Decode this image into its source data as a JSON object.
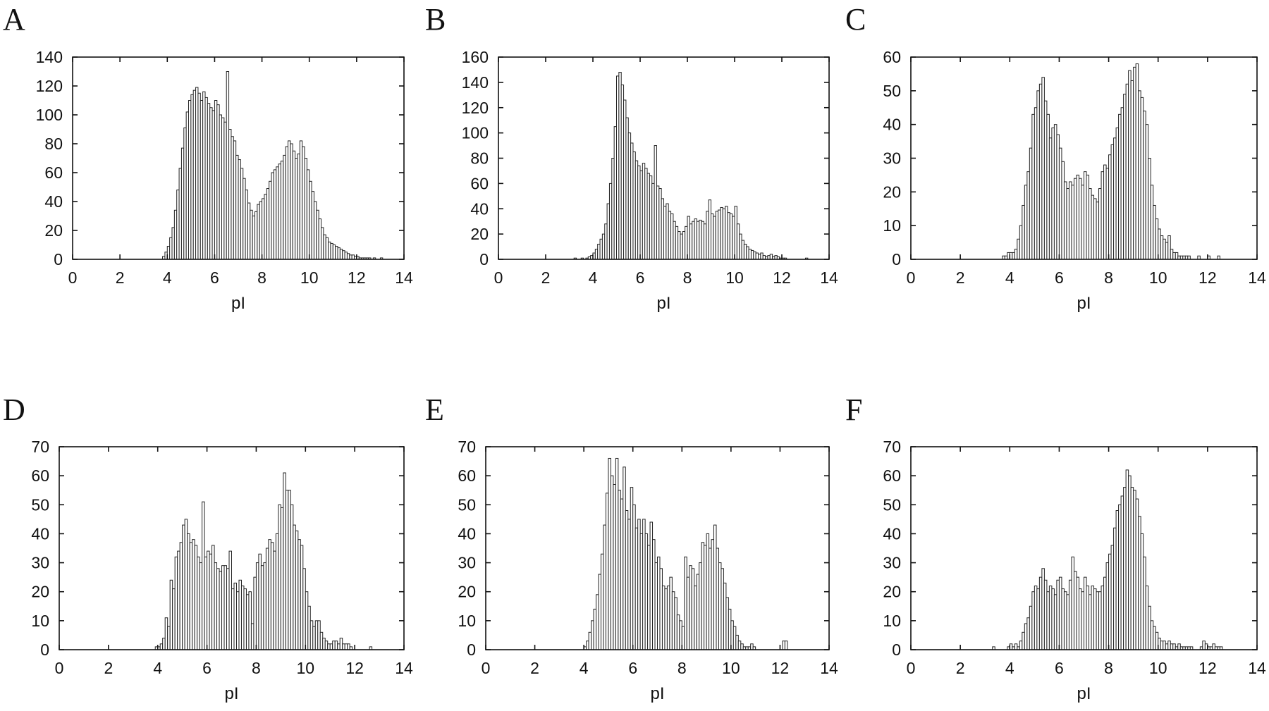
{
  "chart_data": [
    {
      "panel": "A",
      "type": "bar",
      "xlabel": "pI",
      "xlim": [
        0,
        14
      ],
      "ylim": [
        0,
        140
      ],
      "xticks": [
        0,
        2,
        4,
        6,
        8,
        10,
        12,
        14
      ],
      "yticks": [
        0,
        20,
        40,
        60,
        80,
        100,
        120,
        140
      ],
      "bin_width": 0.1,
      "x": [
        3.8,
        3.9,
        4.0,
        4.1,
        4.2,
        4.3,
        4.4,
        4.5,
        4.6,
        4.7,
        4.8,
        4.9,
        5.0,
        5.1,
        5.2,
        5.3,
        5.4,
        5.5,
        5.6,
        5.7,
        5.8,
        5.9,
        6.0,
        6.1,
        6.2,
        6.3,
        6.4,
        6.5,
        6.6,
        6.7,
        6.8,
        6.9,
        7.0,
        7.1,
        7.2,
        7.3,
        7.4,
        7.5,
        7.6,
        7.7,
        7.8,
        7.9,
        8.0,
        8.1,
        8.2,
        8.3,
        8.4,
        8.5,
        8.6,
        8.7,
        8.8,
        8.9,
        9.0,
        9.1,
        9.2,
        9.3,
        9.4,
        9.5,
        9.6,
        9.7,
        9.8,
        9.9,
        10.0,
        10.1,
        10.2,
        10.3,
        10.4,
        10.5,
        10.6,
        10.7,
        10.8,
        10.9,
        11.0,
        11.1,
        11.2,
        11.3,
        11.4,
        11.5,
        11.6,
        11.7,
        11.8,
        11.9,
        12.0,
        12.1,
        12.2,
        12.3,
        12.4,
        12.5,
        12.6,
        12.7,
        12.8,
        12.9,
        13.0
      ],
      "values": [
        2,
        5,
        9,
        15,
        22,
        34,
        48,
        63,
        77,
        91,
        102,
        110,
        114,
        117,
        119,
        115,
        110,
        116,
        112,
        108,
        105,
        103,
        110,
        107,
        100,
        98,
        95,
        130,
        90,
        85,
        82,
        72,
        69,
        63,
        56,
        48,
        39,
        34,
        30,
        33,
        38,
        40,
        42,
        45,
        49,
        54,
        60,
        62,
        64,
        66,
        68,
        72,
        78,
        82,
        80,
        75,
        70,
        73,
        82,
        78,
        70,
        62,
        54,
        47,
        40,
        34,
        28,
        22,
        17,
        15,
        12,
        11,
        10,
        9,
        8,
        7,
        6,
        5,
        4,
        3,
        3,
        2,
        2,
        1,
        1,
        1,
        1,
        1,
        0,
        1,
        0,
        0,
        1
      ]
    },
    {
      "panel": "B",
      "type": "bar",
      "xlabel": "pI",
      "xlim": [
        0,
        14
      ],
      "ylim": [
        0,
        160
      ],
      "xticks": [
        0,
        2,
        4,
        6,
        8,
        10,
        12,
        14
      ],
      "yticks": [
        0,
        20,
        40,
        60,
        80,
        100,
        120,
        140,
        160
      ],
      "bin_width": 0.1,
      "x": [
        3.2,
        3.3,
        3.4,
        3.5,
        3.6,
        3.7,
        3.8,
        3.9,
        4.0,
        4.1,
        4.2,
        4.3,
        4.4,
        4.5,
        4.6,
        4.7,
        4.8,
        4.9,
        5.0,
        5.1,
        5.2,
        5.3,
        5.4,
        5.5,
        5.6,
        5.7,
        5.8,
        5.9,
        6.0,
        6.1,
        6.2,
        6.3,
        6.4,
        6.5,
        6.6,
        6.7,
        6.8,
        6.9,
        7.0,
        7.1,
        7.2,
        7.3,
        7.4,
        7.5,
        7.6,
        7.7,
        7.8,
        7.9,
        8.0,
        8.1,
        8.2,
        8.3,
        8.4,
        8.5,
        8.6,
        8.7,
        8.8,
        8.9,
        9.0,
        9.1,
        9.2,
        9.3,
        9.4,
        9.5,
        9.6,
        9.7,
        9.8,
        9.9,
        10.0,
        10.1,
        10.2,
        10.3,
        10.4,
        10.5,
        10.6,
        10.7,
        10.8,
        10.9,
        11.0,
        11.1,
        11.2,
        11.3,
        11.4,
        11.5,
        11.6,
        11.7,
        11.8,
        11.9,
        12.0,
        12.1,
        12.2,
        12.3,
        12.4,
        12.5,
        12.6,
        12.7,
        12.8,
        12.9,
        13.0
      ],
      "values": [
        1,
        0,
        0,
        1,
        0,
        1,
        2,
        3,
        5,
        8,
        12,
        16,
        20,
        28,
        44,
        60,
        80,
        105,
        145,
        148,
        138,
        126,
        112,
        100,
        92,
        85,
        78,
        74,
        70,
        76,
        72,
        68,
        66,
        60,
        90,
        58,
        56,
        48,
        42,
        44,
        38,
        36,
        30,
        26,
        22,
        20,
        22,
        26,
        34,
        28,
        30,
        32,
        30,
        31,
        30,
        28,
        38,
        47,
        36,
        34,
        38,
        39,
        41,
        40,
        42,
        37,
        36,
        34,
        42,
        28,
        20,
        15,
        12,
        10,
        8,
        7,
        6,
        5,
        4,
        5,
        3,
        2,
        3,
        4,
        2,
        3,
        2,
        1,
        1,
        1,
        0,
        0,
        0,
        0,
        0,
        0,
        0,
        0,
        1
      ]
    },
    {
      "panel": "C",
      "type": "bar",
      "xlabel": "pI",
      "xlim": [
        0,
        14
      ],
      "ylim": [
        0,
        60
      ],
      "xticks": [
        0,
        2,
        4,
        6,
        8,
        10,
        12,
        14
      ],
      "yticks": [
        0,
        10,
        20,
        30,
        40,
        50,
        60
      ],
      "bin_width": 0.1,
      "x": [
        3.7,
        3.8,
        3.9,
        4.0,
        4.1,
        4.2,
        4.3,
        4.4,
        4.5,
        4.6,
        4.7,
        4.8,
        4.9,
        5.0,
        5.1,
        5.2,
        5.3,
        5.4,
        5.5,
        5.6,
        5.7,
        5.8,
        5.9,
        6.0,
        6.1,
        6.2,
        6.3,
        6.4,
        6.5,
        6.6,
        6.7,
        6.8,
        6.9,
        7.0,
        7.1,
        7.2,
        7.3,
        7.4,
        7.5,
        7.6,
        7.7,
        7.8,
        7.9,
        8.0,
        8.1,
        8.2,
        8.3,
        8.4,
        8.5,
        8.6,
        8.7,
        8.8,
        8.9,
        9.0,
        9.1,
        9.2,
        9.3,
        9.4,
        9.5,
        9.6,
        9.7,
        9.8,
        9.9,
        10.0,
        10.1,
        10.2,
        10.3,
        10.4,
        10.5,
        10.6,
        10.7,
        10.8,
        10.9,
        11.0,
        11.1,
        11.2,
        11.3,
        11.4,
        11.5,
        11.6,
        11.7,
        11.8,
        11.9,
        12.0,
        12.1,
        12.2,
        12.3,
        12.4,
        12.5
      ],
      "values": [
        1,
        1,
        2,
        2,
        2,
        3,
        6,
        10,
        16,
        22,
        26,
        33,
        43,
        45,
        50,
        52,
        54,
        47,
        43,
        36,
        39,
        40,
        37,
        33,
        29,
        23,
        21,
        23,
        22,
        24,
        25,
        24,
        22,
        26,
        25,
        21,
        19,
        18,
        17,
        21,
        26,
        28,
        27,
        31,
        34,
        36,
        39,
        43,
        45,
        49,
        52,
        56,
        53,
        57,
        58,
        50,
        48,
        44,
        40,
        30,
        22,
        16,
        12,
        9,
        7,
        6,
        5,
        7,
        3,
        2,
        2,
        1,
        1,
        1,
        1,
        1,
        0,
        0,
        0,
        1,
        0,
        0,
        0,
        1,
        0,
        0,
        0,
        1,
        0
      ]
    },
    {
      "panel": "D",
      "type": "bar",
      "xlabel": "pI",
      "xlim": [
        0,
        14
      ],
      "ylim": [
        0,
        70
      ],
      "xticks": [
        0,
        2,
        4,
        6,
        8,
        10,
        12,
        14
      ],
      "yticks": [
        0,
        10,
        20,
        30,
        40,
        50,
        60,
        70
      ],
      "bin_width": 0.1,
      "x": [
        3.9,
        4.0,
        4.1,
        4.2,
        4.3,
        4.4,
        4.5,
        4.6,
        4.7,
        4.8,
        4.9,
        5.0,
        5.1,
        5.2,
        5.3,
        5.4,
        5.5,
        5.6,
        5.7,
        5.8,
        5.9,
        6.0,
        6.1,
        6.2,
        6.3,
        6.4,
        6.5,
        6.6,
        6.7,
        6.8,
        6.9,
        7.0,
        7.1,
        7.2,
        7.3,
        7.4,
        7.5,
        7.6,
        7.7,
        7.8,
        7.9,
        8.0,
        8.1,
        8.2,
        8.3,
        8.4,
        8.5,
        8.6,
        8.7,
        8.8,
        8.9,
        9.0,
        9.1,
        9.2,
        9.3,
        9.4,
        9.5,
        9.6,
        9.7,
        9.8,
        9.9,
        10.0,
        10.1,
        10.2,
        10.3,
        10.4,
        10.5,
        10.6,
        10.7,
        10.8,
        10.9,
        11.0,
        11.1,
        11.2,
        11.3,
        11.4,
        11.5,
        11.6,
        11.7,
        11.8,
        11.9,
        12.0,
        12.1,
        12.2,
        12.3,
        12.4,
        12.5,
        12.6
      ],
      "values": [
        1,
        1,
        2,
        4,
        11,
        8,
        24,
        21,
        32,
        34,
        37,
        43,
        45,
        40,
        37,
        38,
        36,
        32,
        30,
        51,
        32,
        34,
        33,
        36,
        30,
        28,
        27,
        29,
        29,
        28,
        34,
        21,
        23,
        20,
        24,
        22,
        21,
        19,
        20,
        9,
        25,
        30,
        33,
        29,
        30,
        35,
        38,
        37,
        34,
        40,
        50,
        49,
        61,
        55,
        55,
        50,
        43,
        41,
        38,
        36,
        28,
        20,
        15,
        10,
        8,
        10,
        10,
        6,
        4,
        3,
        2,
        2,
        3,
        3,
        2,
        4,
        2,
        2,
        2,
        1,
        0,
        0,
        0,
        0,
        0,
        0,
        0,
        1
      ]
    },
    {
      "panel": "E",
      "type": "bar",
      "xlabel": "pI",
      "xlim": [
        0,
        14
      ],
      "ylim": [
        0,
        70
      ],
      "xticks": [
        0,
        2,
        4,
        6,
        8,
        10,
        12,
        14
      ],
      "yticks": [
        0,
        10,
        20,
        30,
        40,
        50,
        60,
        70
      ],
      "bin_width": 0.1,
      "x": [
        4.0,
        4.1,
        4.2,
        4.3,
        4.4,
        4.5,
        4.6,
        4.7,
        4.8,
        4.9,
        5.0,
        5.1,
        5.2,
        5.3,
        5.4,
        5.5,
        5.6,
        5.7,
        5.8,
        5.9,
        6.0,
        6.1,
        6.2,
        6.3,
        6.4,
        6.5,
        6.6,
        6.7,
        6.8,
        6.9,
        7.0,
        7.1,
        7.2,
        7.3,
        7.4,
        7.5,
        7.6,
        7.7,
        7.8,
        7.9,
        8.0,
        8.1,
        8.2,
        8.3,
        8.4,
        8.5,
        8.6,
        8.7,
        8.8,
        8.9,
        9.0,
        9.1,
        9.2,
        9.3,
        9.4,
        9.5,
        9.6,
        9.7,
        9.8,
        9.9,
        10.0,
        10.1,
        10.2,
        10.3,
        10.4,
        10.5,
        10.6,
        10.7,
        10.8,
        10.9,
        11.0,
        11.1,
        11.2,
        11.3,
        11.4,
        11.5,
        11.6,
        11.7,
        11.8,
        11.9,
        12.0,
        12.1,
        12.2,
        12.3
      ],
      "values": [
        1,
        3,
        6,
        10,
        14,
        19,
        26,
        33,
        43,
        54,
        66,
        60,
        57,
        66,
        55,
        52,
        63,
        48,
        45,
        56,
        50,
        42,
        45,
        40,
        45,
        40,
        36,
        44,
        38,
        30,
        32,
        28,
        22,
        21,
        22,
        25,
        20,
        18,
        12,
        10,
        8,
        32,
        25,
        29,
        28,
        22,
        26,
        30,
        37,
        36,
        40,
        35,
        38,
        43,
        35,
        30,
        28,
        23,
        18,
        14,
        10,
        8,
        5,
        3,
        2,
        1,
        1,
        1,
        2,
        1,
        0,
        0,
        0,
        0,
        0,
        0,
        0,
        0,
        0,
        0,
        0,
        3,
        3,
        0
      ]
    },
    {
      "panel": "F",
      "type": "bar",
      "xlabel": "pI",
      "xlim": [
        0,
        14
      ],
      "ylim": [
        0,
        70
      ],
      "xticks": [
        0,
        2,
        4,
        6,
        8,
        10,
        12,
        14
      ],
      "yticks": [
        0,
        10,
        20,
        30,
        40,
        50,
        60,
        70
      ],
      "bin_width": 0.1,
      "x": [
        3.3,
        3.4,
        3.5,
        3.6,
        3.7,
        3.8,
        3.9,
        4.0,
        4.1,
        4.2,
        4.3,
        4.4,
        4.5,
        4.6,
        4.7,
        4.8,
        4.9,
        5.0,
        5.1,
        5.2,
        5.3,
        5.4,
        5.5,
        5.6,
        5.7,
        5.8,
        5.9,
        6.0,
        6.1,
        6.2,
        6.3,
        6.4,
        6.5,
        6.6,
        6.7,
        6.8,
        6.9,
        7.0,
        7.1,
        7.2,
        7.3,
        7.4,
        7.5,
        7.6,
        7.7,
        7.8,
        7.9,
        8.0,
        8.1,
        8.2,
        8.3,
        8.4,
        8.5,
        8.6,
        8.7,
        8.8,
        8.9,
        9.0,
        9.1,
        9.2,
        9.3,
        9.4,
        9.5,
        9.6,
        9.7,
        9.8,
        9.9,
        10.0,
        10.1,
        10.2,
        10.3,
        10.4,
        10.5,
        10.6,
        10.7,
        10.8,
        10.9,
        11.0,
        11.1,
        11.2,
        11.3,
        11.4,
        11.5,
        11.6,
        11.7,
        11.8,
        11.9,
        12.0,
        12.1,
        12.2,
        12.3,
        12.4,
        12.5
      ],
      "values": [
        1,
        0,
        0,
        0,
        0,
        0,
        1,
        2,
        1,
        2,
        1,
        3,
        6,
        9,
        11,
        15,
        20,
        22,
        21,
        25,
        28,
        24,
        20,
        22,
        21,
        19,
        24,
        25,
        21,
        20,
        19,
        24,
        32,
        27,
        25,
        21,
        20,
        25,
        22,
        19,
        22,
        21,
        20,
        20,
        22,
        25,
        30,
        33,
        36,
        42,
        48,
        50,
        53,
        56,
        62,
        60,
        56,
        55,
        52,
        46,
        40,
        32,
        22,
        15,
        10,
        8,
        6,
        4,
        3,
        3,
        2,
        3,
        2,
        2,
        1,
        2,
        1,
        1,
        1,
        1,
        1,
        0,
        0,
        0,
        1,
        3,
        2,
        1,
        1,
        2,
        1,
        1,
        1
      ]
    }
  ]
}
